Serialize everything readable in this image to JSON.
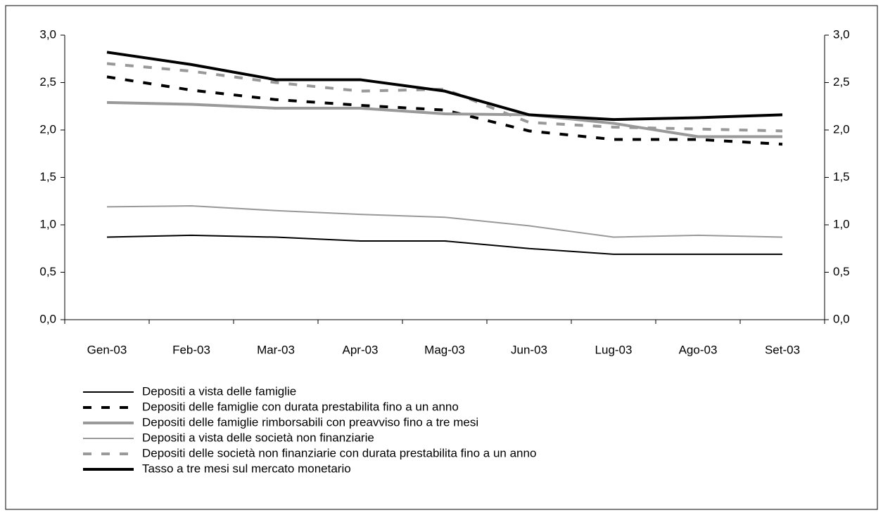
{
  "chart_data": {
    "type": "line",
    "categories": [
      "Gen-03",
      "Feb-03",
      "Mar-03",
      "Apr-03",
      "Mag-03",
      "Jun-03",
      "Lug-03",
      "Ago-03",
      "Set-03"
    ],
    "series": [
      {
        "name": "Depositi a vista delle famiglie",
        "color": "#000000",
        "weight": "thin",
        "dashed": false,
        "values": [
          0.87,
          0.89,
          0.87,
          0.83,
          0.83,
          0.75,
          0.69,
          0.69,
          0.69
        ]
      },
      {
        "name": "Depositi delle famiglie con durata prestabilita fino a un anno",
        "color": "#000000",
        "weight": "thick",
        "dashed": true,
        "values": [
          2.56,
          2.42,
          2.32,
          2.26,
          2.21,
          1.99,
          1.9,
          1.9,
          1.85
        ]
      },
      {
        "name": "Depositi delle famiglie rimborsabili con preavviso fino a tre mesi",
        "color": "#999999",
        "weight": "thick",
        "dashed": false,
        "values": [
          2.29,
          2.27,
          2.23,
          2.23,
          2.17,
          2.16,
          2.07,
          1.93,
          1.93
        ]
      },
      {
        "name": "Depositi a vista delle società non finanziarie",
        "color": "#999999",
        "weight": "thin",
        "dashed": false,
        "values": [
          1.19,
          1.2,
          1.15,
          1.11,
          1.08,
          0.99,
          0.87,
          0.89,
          0.87
        ]
      },
      {
        "name": "Depositi delle società non finanziarie con durata prestabilita fino a un anno",
        "color": "#999999",
        "weight": "thick",
        "dashed": true,
        "values": [
          2.7,
          2.62,
          2.5,
          2.41,
          2.43,
          2.08,
          2.03,
          2.01,
          1.99
        ]
      },
      {
        "name": "Tasso a tre mesi sul mercato monetario",
        "color": "#000000",
        "weight": "thick",
        "dashed": false,
        "values": [
          2.82,
          2.69,
          2.53,
          2.53,
          2.41,
          2.16,
          2.11,
          2.13,
          2.16
        ]
      }
    ],
    "ylim": [
      0,
      3
    ],
    "yticks": [
      {
        "value": 0,
        "label": "0,0"
      },
      {
        "value": 0.5,
        "label": "0,5"
      },
      {
        "value": 1,
        "label": "1,0"
      },
      {
        "value": 1.5,
        "label": "1,5"
      },
      {
        "value": 2,
        "label": "2,0"
      },
      {
        "value": 2.5,
        "label": "2,5"
      },
      {
        "value": 3,
        "label": "3,0"
      }
    ],
    "y2lim": [
      0,
      3
    ],
    "y2ticks": [
      {
        "value": 0,
        "label": "0,0"
      },
      {
        "value": 0.5,
        "label": "0,5"
      },
      {
        "value": 1,
        "label": "1,0"
      },
      {
        "value": 1.5,
        "label": "1,5"
      },
      {
        "value": 2,
        "label": "2,0"
      },
      {
        "value": 2.5,
        "label": "2,5"
      },
      {
        "value": 3,
        "label": "3,0"
      }
    ],
    "grid": false,
    "legend": "bottom"
  }
}
